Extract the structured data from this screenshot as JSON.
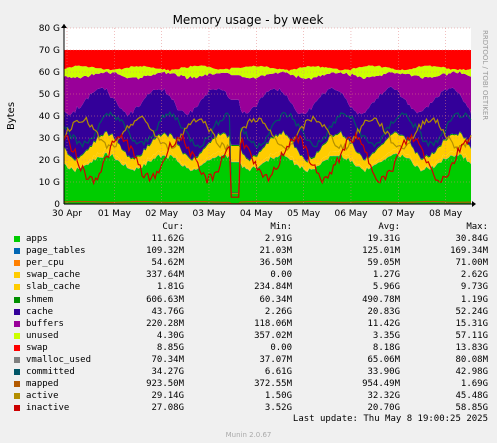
{
  "chart_data": {
    "type": "area",
    "title": "Memory usage - by week",
    "ylabel": "Bytes",
    "side_label": "RRDTOOL / TOBI OETIKER",
    "x_ticks": [
      "30 Apr",
      "01 May",
      "02 May",
      "03 May",
      "04 May",
      "05 May",
      "06 May",
      "07 May",
      "08 May"
    ],
    "y_ticks": [
      "0",
      "10 G",
      "20 G",
      "30 G",
      "40 G",
      "50 G",
      "60 G",
      "70 G",
      "80 G"
    ],
    "ylim": [
      0,
      80
    ],
    "y_unit": "G",
    "grid": true,
    "stack_order": [
      "apps",
      "page_tables",
      "per_cpu",
      "swap_cache",
      "slab_cache",
      "shmem",
      "cache",
      "buffers",
      "unused",
      "swap"
    ],
    "line_series": [
      "vmalloc_used",
      "committed",
      "mapped",
      "active",
      "inactive"
    ],
    "series_avg_G": {
      "apps": 19.3,
      "page_tables": 0.13,
      "per_cpu": 0.06,
      "swap_cache": 1.3,
      "slab_cache": 6.0,
      "shmem": 0.5,
      "cache": 20.8,
      "buffers": 11.4,
      "unused": 3.4,
      "swap": 8.2,
      "committed": 33.9,
      "mapped": 0.95,
      "active": 32.3,
      "inactive": 20.7
    }
  },
  "legend": {
    "headers": {
      "cur": "Cur:",
      "min": "Min:",
      "avg": "Avg:",
      "max": "Max:"
    },
    "rows": [
      {
        "name": "apps",
        "color": "#00cc00",
        "cur": "11.62G",
        "min": "2.91G",
        "avg": "19.31G",
        "max": "30.84G"
      },
      {
        "name": "page_tables",
        "color": "#0066b3",
        "cur": "109.32M",
        "min": "21.03M",
        "avg": "125.01M",
        "max": "169.34M"
      },
      {
        "name": "per_cpu",
        "color": "#ff8000",
        "cur": "54.62M",
        "min": "36.50M",
        "avg": "59.05M",
        "max": "71.00M"
      },
      {
        "name": "swap_cache",
        "color": "#ffcc00",
        "cur": "337.64M",
        "min": "0.00",
        "avg": "1.27G",
        "max": "2.62G"
      },
      {
        "name": "slab_cache",
        "color": "#ffcc00",
        "cur": "1.81G",
        "min": "234.84M",
        "avg": "5.96G",
        "max": "9.73G"
      },
      {
        "name": "shmem",
        "color": "#008f00",
        "cur": "606.63M",
        "min": "60.34M",
        "avg": "490.78M",
        "max": "1.19G"
      },
      {
        "name": "cache",
        "color": "#330099",
        "cur": "43.76G",
        "min": "2.26G",
        "avg": "20.83G",
        "max": "52.24G"
      },
      {
        "name": "buffers",
        "color": "#990099",
        "cur": "220.28M",
        "min": "118.06M",
        "avg": "11.42G",
        "max": "15.31G"
      },
      {
        "name": "unused",
        "color": "#ccff00",
        "cur": "4.30G",
        "min": "357.02M",
        "avg": "3.35G",
        "max": "57.11G"
      },
      {
        "name": "swap",
        "color": "#ff0000",
        "cur": "8.85G",
        "min": "0.00",
        "avg": "8.18G",
        "max": "13.83G"
      },
      {
        "name": "vmalloc_used",
        "color": "#808080",
        "cur": "70.34M",
        "min": "37.07M",
        "avg": "65.06M",
        "max": "80.08M"
      },
      {
        "name": "committed",
        "color": "#005566",
        "cur": "34.27G",
        "min": "6.61G",
        "avg": "33.90G",
        "max": "42.98G"
      },
      {
        "name": "mapped",
        "color": "#b35a00",
        "cur": "923.50M",
        "min": "372.55M",
        "avg": "954.49M",
        "max": "1.69G"
      },
      {
        "name": "active",
        "color": "#b38f00",
        "cur": "29.14G",
        "min": "1.50G",
        "avg": "32.32G",
        "max": "45.48G"
      },
      {
        "name": "inactive",
        "color": "#cc0000",
        "cur": "27.08G",
        "min": "3.52G",
        "avg": "20.70G",
        "max": "58.85G"
      }
    ]
  },
  "footer": {
    "last_update": "Last update: Thu May  8 19:00:25 2025",
    "version": "Munin 2.0.67"
  }
}
